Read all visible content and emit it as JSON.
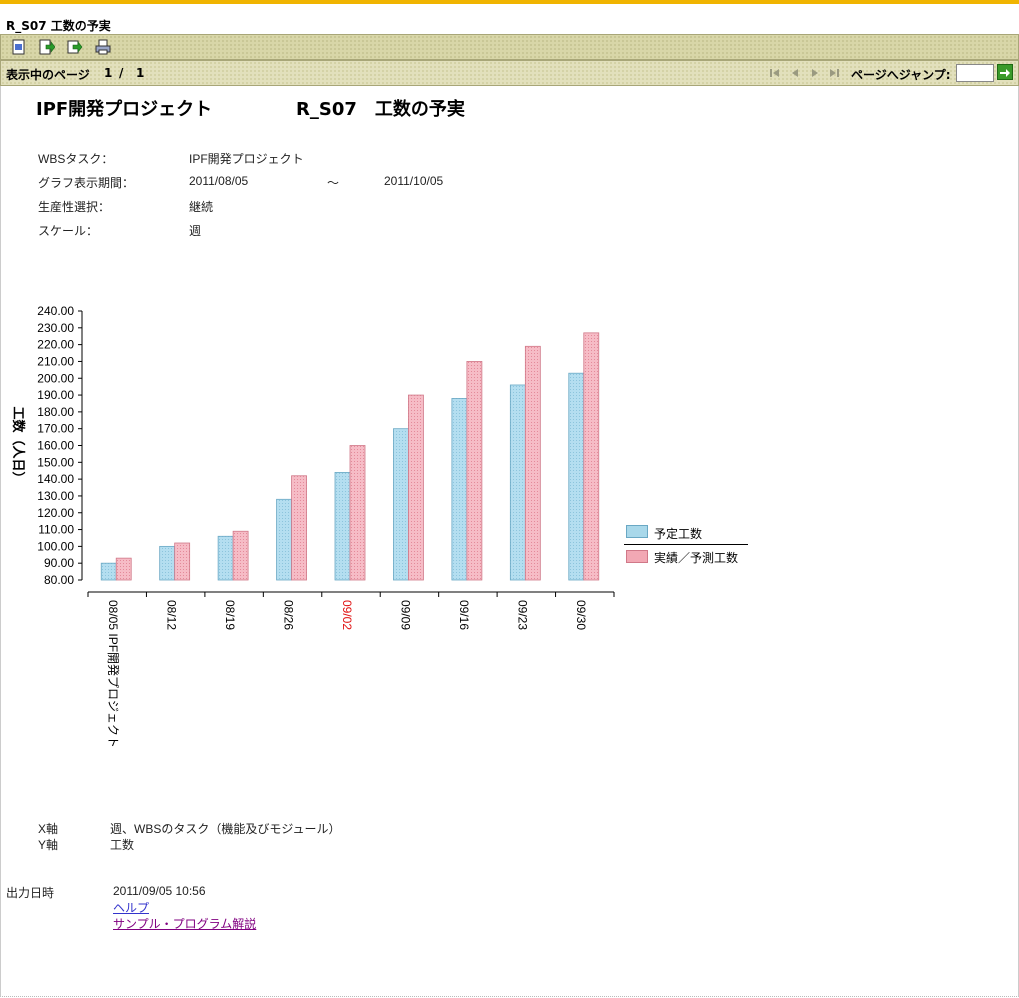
{
  "window": {
    "title": "R_S07 工数の予実"
  },
  "toolbar": {
    "icons": [
      "export-icon",
      "next-doc-icon",
      "forward-icon",
      "print-icon"
    ]
  },
  "pager": {
    "label": "表示中のページ",
    "current": "1",
    "separator": "/",
    "total": "1",
    "jump_label": "ページへジャンプ:",
    "jump_value": ""
  },
  "report": {
    "project_title": "IPF開発プロジェクト",
    "report_title": "R_S07　工数の予実",
    "fields": [
      {
        "label": "WBSタスク：",
        "value": "IPF開発プロジェクト"
      },
      {
        "label": "グラフ表示期間：",
        "value": "2011/08/05",
        "tilde": "〜",
        "value2": "2011/10/05"
      },
      {
        "label": "生産性選択：",
        "value": "継続"
      },
      {
        "label": "スケール：",
        "value": "週"
      }
    ]
  },
  "chart_data": {
    "type": "bar",
    "ylabel": "工数（人日）",
    "ylim": [
      80,
      240
    ],
    "yticks": [
      "80.00",
      "90.00",
      "100.00",
      "110.00",
      "120.00",
      "130.00",
      "140.00",
      "150.00",
      "160.00",
      "170.00",
      "180.00",
      "190.00",
      "200.00",
      "210.00",
      "220.00",
      "230.00",
      "240.00"
    ],
    "categories": [
      "08/05 IPF開発プロジェクト",
      "08/12",
      "08/19",
      "08/26",
      "09/02",
      "09/09",
      "09/16",
      "09/23",
      "09/30"
    ],
    "highlight_category": "09/02",
    "highlight_color": "#e01010",
    "series": [
      {
        "name": "予定工数",
        "color": "#a9d8ea",
        "values": [
          90,
          100,
          106,
          128,
          144,
          170,
          188,
          196,
          203
        ]
      },
      {
        "name": "実績／予測工数",
        "color": "#f2a8b4",
        "values": [
          93,
          102,
          109,
          142,
          160,
          190,
          210,
          219,
          227
        ]
      }
    ],
    "legend": "right"
  },
  "axes_note": {
    "x_label": "X軸",
    "x_value": "週、WBSのタスク（機能及びモジュール）",
    "y_label": "Y軸",
    "y_value": "工数"
  },
  "footer": {
    "output_label": "出力日時",
    "output_value": "2011/09/05 10:56",
    "help_link": "ヘルプ",
    "sample_link": "サンプル・プログラム解説"
  }
}
